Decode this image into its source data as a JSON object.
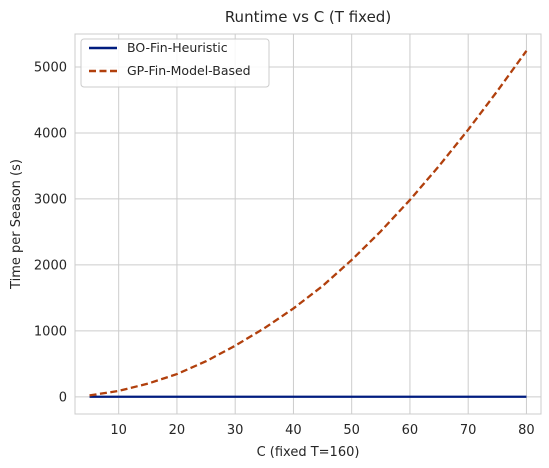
{
  "chart_data": {
    "type": "line",
    "title": "Runtime vs C (T fixed)",
    "xlabel": "C (fixed T=160)",
    "ylabel": "Time per Season (s)",
    "xlim": [
      2.5,
      82.5
    ],
    "ylim": [
      -260,
      5500
    ],
    "xticks": [
      10,
      20,
      30,
      40,
      50,
      60,
      70,
      80
    ],
    "yticks": [
      0,
      1000,
      2000,
      3000,
      4000,
      5000
    ],
    "grid": true,
    "legend_position": "top-left",
    "x": [
      5,
      10,
      15,
      20,
      25,
      30,
      35,
      40,
      45,
      50,
      55,
      60,
      65,
      70,
      75,
      80
    ],
    "series": [
      {
        "name": "BO-Fin-Heuristic",
        "color": "#001c7f",
        "style": "solid",
        "values": [
          2,
          2,
          2,
          2,
          2,
          2,
          2,
          2,
          2,
          2,
          2,
          2,
          2,
          2,
          2,
          2
        ]
      },
      {
        "name": "GP-Fin-Model-Based",
        "color": "#b1400d",
        "style": "dashed",
        "values": [
          22,
          90,
          200,
          345,
          540,
          775,
          1040,
          1340,
          1680,
          2075,
          2510,
          2985,
          3500,
          4050,
          4635,
          5245
        ]
      }
    ]
  }
}
